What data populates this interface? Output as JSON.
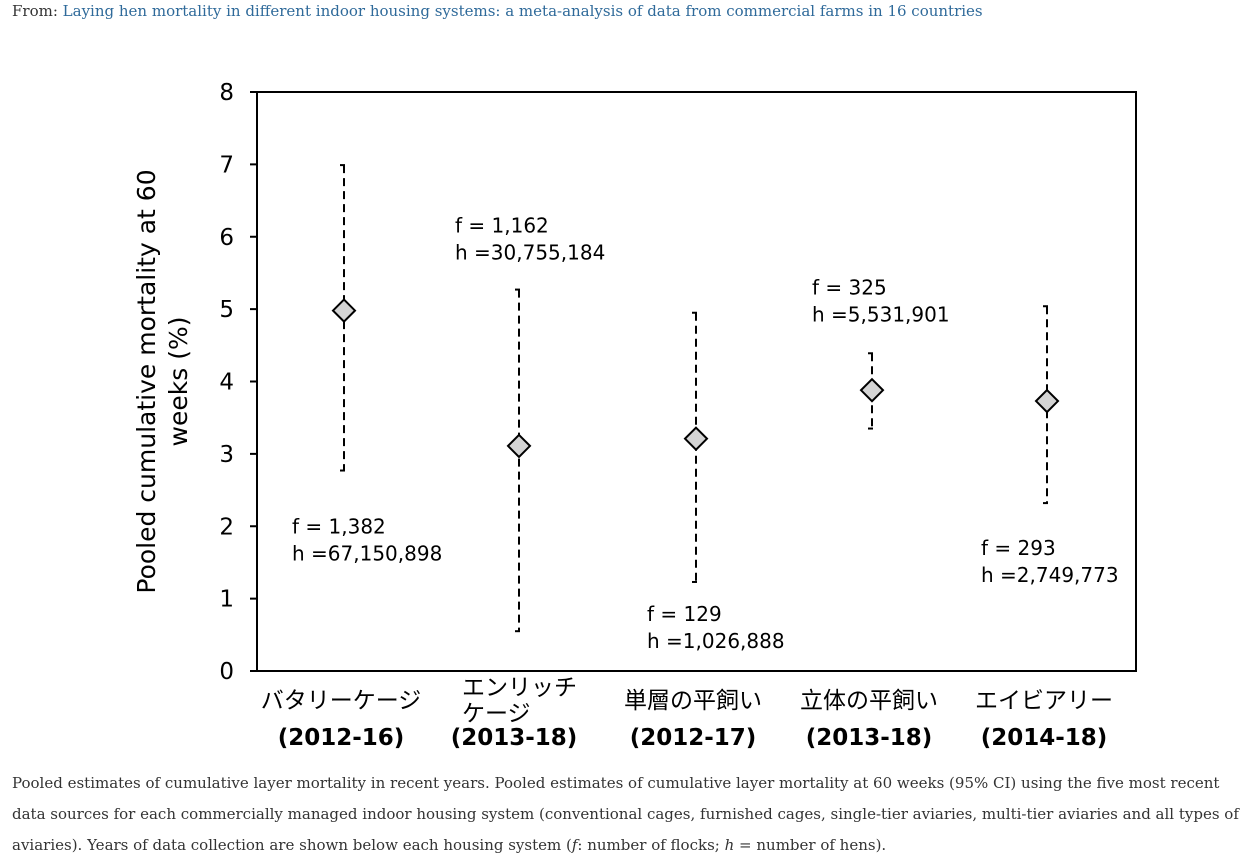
{
  "source": {
    "prefix": "From:",
    "article_title": "Laying hen mortality in different indoor housing systems: a meta-analysis of data from commercial farms in 16 countries"
  },
  "chart_data": {
    "type": "scatter",
    "ylabel": "Pooled cumulative mortality at 60 weeks (%)",
    "ylim": [
      0,
      8
    ],
    "yticks": [
      0,
      1,
      2,
      3,
      4,
      5,
      6,
      7,
      8
    ],
    "grid": false,
    "categories": [
      {
        "name_lines": [
          "バタリーケージ"
        ],
        "years": "(2012-16)"
      },
      {
        "name_lines": [
          "エンリッチ",
          "ケージ"
        ],
        "years": "(2013-18)"
      },
      {
        "name_lines": [
          "単層の平飼い"
        ],
        "years": "(2012-17)"
      },
      {
        "name_lines": [
          "立体の平飼い"
        ],
        "years": "(2013-18)"
      },
      {
        "name_lines": [
          "エイビアリー"
        ],
        "years": "(2014-18)"
      }
    ],
    "points": [
      {
        "estimate": 4.98,
        "ci_low": 2.77,
        "ci_high": 6.99,
        "flocks": "f = 1,382",
        "hens": "h =67,150,898",
        "label_anchor": 1.9
      },
      {
        "estimate": 3.11,
        "ci_low": 0.55,
        "ci_high": 5.27,
        "flocks": "f = 1,162",
        "hens": "h =30,755,184",
        "label_anchor": 6.06
      },
      {
        "estimate": 3.21,
        "ci_low": 1.23,
        "ci_high": 4.95,
        "flocks": "f = 129",
        "hens": "h =1,026,888",
        "label_anchor": 0.69
      },
      {
        "estimate": 3.88,
        "ci_low": 3.35,
        "ci_high": 4.39,
        "flocks": "f = 325",
        "hens": "h =5,531,901",
        "label_anchor": 5.2
      },
      {
        "estimate": 3.73,
        "ci_low": 2.32,
        "ci_high": 5.04,
        "flocks": "f = 293",
        "hens": "h =2,749,773",
        "label_anchor": 1.6
      }
    ],
    "marker_color": "#d4d4d4"
  },
  "caption": {
    "text_1": "Pooled estimates of cumulative layer mortality in recent years. Pooled estimates of cumulative layer mortality at 60 weeks (95% CI) using the five most recent data sources for each commercially managed indoor housing system (conventional cages, furnished cages, single-tier aviaries, multi-tier aviaries and all types of aviaries). Years of data collection are shown below each housing system (",
    "f_symbol": "f",
    "text_2": ": number of flocks; ",
    "h_symbol": "h",
    "text_3": " = number of hens)."
  }
}
